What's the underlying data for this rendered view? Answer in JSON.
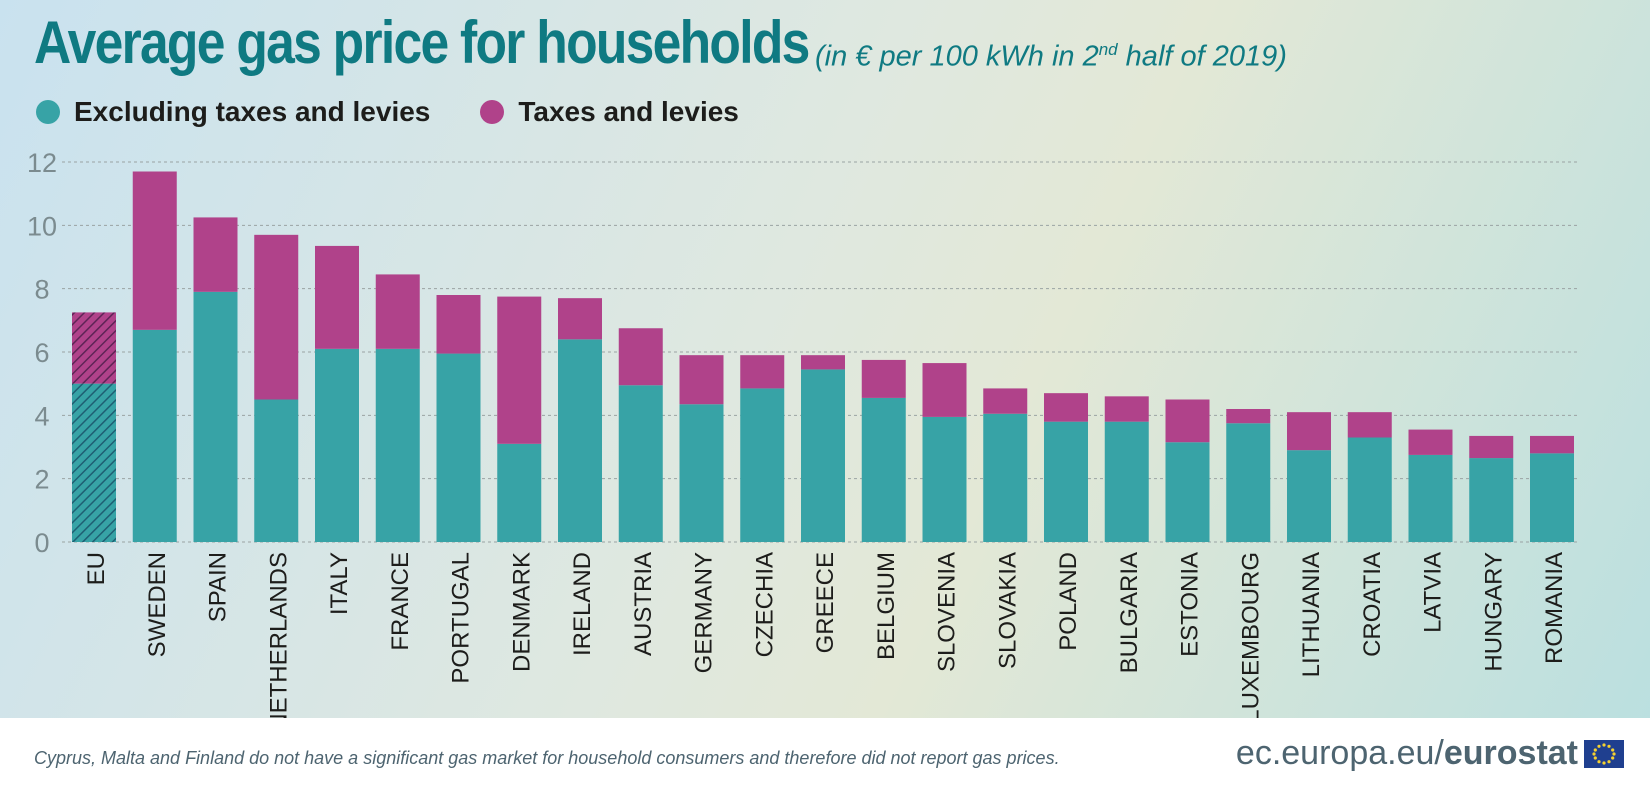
{
  "header": {
    "title": "Average gas price for households",
    "subtitle_prefix": "(in € per 100 kWh in 2",
    "subtitle_sup": "nd",
    "subtitle_suffix": " half of 2019)"
  },
  "legend": {
    "items": [
      {
        "label": "Excluding taxes and levies",
        "color": "#37a3a6"
      },
      {
        "label": "Taxes and levies",
        "color": "#b0428a"
      }
    ]
  },
  "chart_data": {
    "type": "bar",
    "stacked": true,
    "categories": [
      "EU",
      "SWEDEN",
      "SPAIN",
      "NETHERLANDS",
      "ITALY",
      "FRANCE",
      "PORTUGAL",
      "DENMARK",
      "IRELAND",
      "AUSTRIA",
      "GERMANY",
      "CZECHIA",
      "GREECE",
      "BELGIUM",
      "SLOVENIA",
      "SLOVAKIA",
      "POLAND",
      "BULGARIA",
      "ESTONIA",
      "LUXEMBOURG",
      "LITHUANIA",
      "CROATIA",
      "LATVIA",
      "HUNGARY",
      "ROMANIA"
    ],
    "series": [
      {
        "name": "Excluding taxes and levies",
        "color": "#37a3a6",
        "values": [
          5.0,
          6.7,
          7.9,
          4.5,
          6.1,
          6.1,
          5.95,
          3.1,
          6.4,
          4.95,
          4.35,
          4.85,
          5.45,
          4.55,
          3.95,
          4.05,
          3.8,
          3.8,
          3.15,
          3.75,
          2.9,
          3.3,
          2.75,
          2.65,
          2.8
        ]
      },
      {
        "name": "Taxes and levies",
        "color": "#b0428a",
        "values": [
          2.25,
          5.0,
          2.35,
          5.2,
          3.25,
          2.35,
          1.85,
          4.65,
          1.3,
          1.8,
          1.55,
          1.05,
          0.45,
          1.2,
          1.7,
          0.8,
          0.9,
          0.8,
          1.35,
          0.45,
          1.2,
          0.8,
          0.8,
          0.7,
          0.55
        ]
      }
    ],
    "hatched_categories": [
      "EU"
    ],
    "yticks": [
      0,
      2,
      4,
      6,
      8,
      10,
      12
    ],
    "ylim": [
      0,
      12
    ],
    "grid": true,
    "legend_position": "top-left"
  },
  "footer": {
    "note": "Cyprus, Malta and Finland do not have a significant gas market for household consumers and therefore did not report gas prices.",
    "brand_domain": "ec.europa.eu/",
    "brand_name": "eurostat"
  },
  "colors": {
    "title": "#0f7a82",
    "grid": "#9aa3a3",
    "tick": "#7b8b8f",
    "category_label": "#1d1d1b"
  }
}
